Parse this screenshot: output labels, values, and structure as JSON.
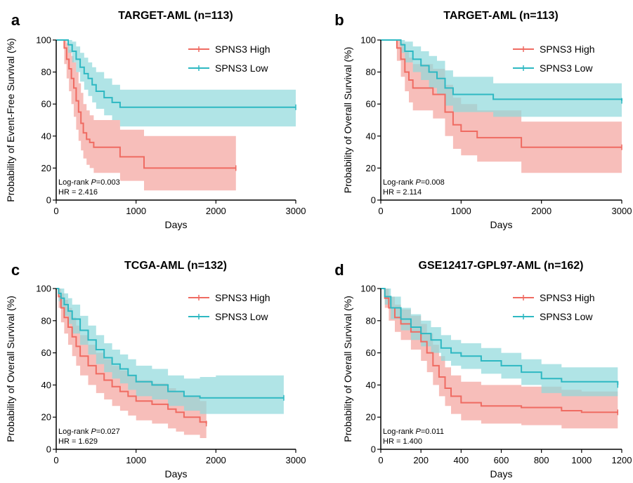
{
  "colors": {
    "high": "#ef6b62",
    "high_band": "#f4a39c",
    "low": "#2eb8c2",
    "low_band": "#8fd8dc"
  },
  "chart_data": [
    {
      "panel": "a",
      "type": "line",
      "title": "TARGET-AML (n=113)",
      "xlabel": "Days",
      "ylabel": "Probability of Event-Free Survival (%)",
      "xlim": [
        0,
        3000
      ],
      "ylim": [
        0,
        100
      ],
      "xticks": [
        0,
        1000,
        2000,
        3000
      ],
      "yticks": [
        0,
        20,
        40,
        60,
        80,
        100
      ],
      "stats": {
        "logrank_label": "Log-rank ",
        "p_label": "P",
        "p_value": "=0.003",
        "hr": "HR = 2.416"
      },
      "series": [
        {
          "name": "SPNS3 High",
          "x": [
            0,
            70,
            100,
            130,
            160,
            190,
            220,
            250,
            280,
            310,
            340,
            380,
            420,
            470,
            520,
            600,
            800,
            1100,
            2250
          ],
          "y": [
            100,
            100,
            95,
            88,
            82,
            76,
            70,
            62,
            55,
            48,
            42,
            38,
            36,
            33,
            33,
            33,
            27,
            20,
            20
          ],
          "lower": [
            100,
            100,
            85,
            76,
            68,
            60,
            52,
            44,
            37,
            31,
            26,
            22,
            20,
            17,
            17,
            17,
            12,
            6,
            6
          ],
          "upper": [
            100,
            100,
            100,
            98,
            94,
            90,
            86,
            80,
            73,
            67,
            60,
            56,
            53,
            50,
            50,
            50,
            44,
            40,
            40
          ]
        },
        {
          "name": "SPNS3 Low",
          "x": [
            0,
            110,
            150,
            200,
            250,
            300,
            350,
            400,
            450,
            500,
            600,
            700,
            800,
            3000
          ],
          "y": [
            100,
            100,
            97,
            93,
            88,
            83,
            79,
            76,
            72,
            68,
            64,
            61,
            58,
            58
          ],
          "lower": [
            100,
            100,
            92,
            86,
            80,
            74,
            69,
            65,
            61,
            57,
            53,
            50,
            46,
            46
          ],
          "upper": [
            100,
            100,
            100,
            99,
            96,
            92,
            89,
            86,
            83,
            80,
            76,
            72,
            69,
            69
          ]
        }
      ]
    },
    {
      "panel": "b",
      "type": "line",
      "title": "TARGET-AML (n=113)",
      "xlabel": "Days",
      "ylabel": "Probability of Overall Survival (%)",
      "xlim": [
        0,
        3000
      ],
      "ylim": [
        0,
        100
      ],
      "xticks": [
        0,
        1000,
        2000,
        3000
      ],
      "yticks": [
        0,
        20,
        40,
        60,
        80,
        100
      ],
      "stats": {
        "logrank_label": "Log-rank ",
        "p_label": "P",
        "p_value": "=0.008",
        "hr": "HR = 2.114"
      },
      "series": [
        {
          "name": "SPNS3 High",
          "x": [
            0,
            150,
            200,
            250,
            300,
            350,
            400,
            500,
            650,
            800,
            900,
            1000,
            1200,
            1500,
            1750,
            3000
          ],
          "y": [
            100,
            100,
            95,
            88,
            80,
            75,
            70,
            70,
            66,
            55,
            47,
            43,
            39,
            39,
            33,
            33
          ],
          "lower": [
            100,
            100,
            87,
            77,
            68,
            61,
            56,
            56,
            51,
            40,
            32,
            28,
            24,
            24,
            17,
            17
          ],
          "upper": [
            100,
            100,
            100,
            98,
            93,
            89,
            85,
            85,
            82,
            72,
            64,
            60,
            56,
            56,
            49,
            49
          ]
        },
        {
          "name": "SPNS3 Low",
          "x": [
            0,
            200,
            250,
            300,
            400,
            500,
            600,
            700,
            800,
            900,
            1400,
            3000
          ],
          "y": [
            100,
            100,
            97,
            93,
            88,
            84,
            80,
            76,
            70,
            66,
            63,
            62
          ],
          "lower": [
            100,
            100,
            92,
            86,
            80,
            75,
            70,
            66,
            59,
            55,
            52,
            51
          ],
          "upper": [
            100,
            100,
            100,
            99,
            96,
            93,
            90,
            87,
            81,
            77,
            73,
            72
          ]
        }
      ]
    },
    {
      "panel": "c",
      "type": "line",
      "title": "TCGA-AML (n=132)",
      "xlabel": "Days",
      "ylabel": "Probability of Overall Survival (%)",
      "xlim": [
        0,
        3000
      ],
      "ylim": [
        0,
        100
      ],
      "xticks": [
        0,
        1000,
        2000,
        3000
      ],
      "yticks": [
        0,
        20,
        40,
        60,
        80,
        100
      ],
      "stats": {
        "logrank_label": "Log-rank ",
        "p_label": "P",
        "p_value": "=0.027",
        "hr": "HR = 1.629"
      },
      "series": [
        {
          "name": "SPNS3 High",
          "x": [
            0,
            30,
            60,
            100,
            150,
            200,
            250,
            300,
            400,
            500,
            600,
            700,
            800,
            900,
            1000,
            1200,
            1400,
            1500,
            1600,
            1800,
            1880
          ],
          "y": [
            100,
            95,
            88,
            82,
            76,
            70,
            64,
            58,
            52,
            47,
            43,
            39,
            36,
            33,
            30,
            28,
            25,
            23,
            20,
            17,
            16
          ],
          "lower": [
            100,
            88,
            79,
            72,
            65,
            58,
            52,
            46,
            40,
            35,
            31,
            27,
            24,
            21,
            18,
            16,
            13,
            11,
            9,
            7,
            6
          ],
          "upper": [
            100,
            100,
            97,
            93,
            88,
            82,
            77,
            71,
            65,
            60,
            56,
            52,
            49,
            46,
            43,
            41,
            38,
            36,
            33,
            30,
            29
          ]
        },
        {
          "name": "SPNS3 Low",
          "x": [
            0,
            30,
            60,
            100,
            150,
            200,
            300,
            400,
            500,
            600,
            700,
            800,
            900,
            1000,
            1200,
            1400,
            1600,
            1800,
            2000,
            2850
          ],
          "y": [
            100,
            97,
            94,
            90,
            86,
            81,
            74,
            68,
            62,
            57,
            53,
            50,
            46,
            42,
            40,
            36,
            33,
            32,
            32,
            32
          ],
          "lower": [
            100,
            92,
            88,
            83,
            78,
            72,
            65,
            59,
            53,
            48,
            44,
            41,
            37,
            33,
            31,
            27,
            24,
            22,
            22,
            22
          ],
          "upper": [
            100,
            100,
            100,
            97,
            94,
            90,
            83,
            77,
            71,
            66,
            62,
            59,
            56,
            52,
            50,
            46,
            44,
            45,
            46,
            46
          ]
        }
      ]
    },
    {
      "panel": "d",
      "type": "line",
      "title": "GSE12417-GPL97-AML (n=162)",
      "xlabel": "Days",
      "ylabel": "Probability of Overall Survival (%)",
      "xlim": [
        0,
        1200
      ],
      "ylim": [
        0,
        100
      ],
      "xticks": [
        0,
        200,
        400,
        600,
        800,
        1000,
        1200
      ],
      "yticks": [
        0,
        20,
        40,
        60,
        80,
        100
      ],
      "stats": {
        "logrank_label": "Log-rank ",
        "p_label": "P",
        "p_value": "=0.011",
        "hr": "HR = 1.400"
      },
      "series": [
        {
          "name": "SPNS3 High",
          "x": [
            0,
            20,
            40,
            70,
            100,
            150,
            200,
            230,
            260,
            290,
            320,
            350,
            400,
            500,
            700,
            800,
            900,
            1000,
            1180
          ],
          "y": [
            100,
            94,
            88,
            82,
            78,
            73,
            67,
            60,
            52,
            45,
            38,
            33,
            29,
            27,
            26,
            26,
            24,
            23,
            23
          ],
          "lower": [
            100,
            88,
            80,
            73,
            68,
            62,
            55,
            48,
            40,
            33,
            27,
            22,
            18,
            16,
            15,
            15,
            13,
            13,
            13
          ],
          "upper": [
            100,
            100,
            95,
            90,
            87,
            83,
            78,
            72,
            65,
            58,
            51,
            46,
            42,
            40,
            39,
            39,
            37,
            36,
            36
          ]
        },
        {
          "name": "SPNS3 Low",
          "x": [
            0,
            20,
            50,
            100,
            150,
            200,
            250,
            300,
            350,
            400,
            500,
            600,
            700,
            800,
            900,
            1000,
            1100,
            1180
          ],
          "y": [
            100,
            95,
            88,
            81,
            76,
            72,
            68,
            63,
            60,
            58,
            55,
            52,
            48,
            44,
            42,
            42,
            42,
            40
          ],
          "lower": [
            100,
            90,
            81,
            74,
            68,
            64,
            60,
            55,
            52,
            50,
            47,
            44,
            40,
            35,
            33,
            33,
            33,
            31
          ],
          "upper": [
            100,
            100,
            95,
            88,
            84,
            80,
            76,
            71,
            68,
            66,
            63,
            60,
            56,
            53,
            51,
            51,
            51,
            50
          ]
        }
      ]
    }
  ]
}
